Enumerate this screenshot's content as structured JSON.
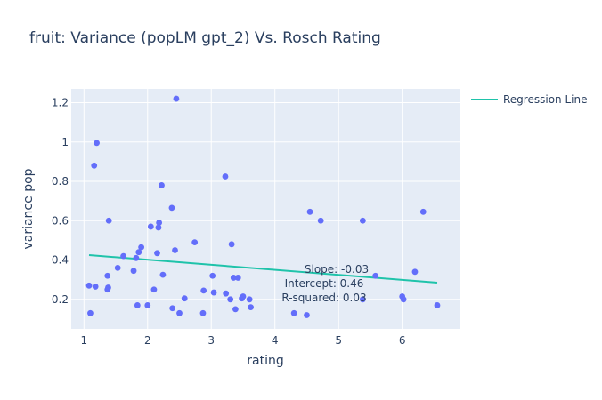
{
  "chart_data": {
    "type": "scatter",
    "title": "fruit: Variance (popLM gpt_2) Vs. Rosch Rating",
    "xlabel": "rating",
    "ylabel": "variance pop",
    "xlim": [
      0.8,
      6.9
    ],
    "ylim": [
      0.05,
      1.27
    ],
    "x_ticks": [
      1,
      2,
      3,
      4,
      5,
      6
    ],
    "x_tick_labels": [
      "1",
      "2",
      "3",
      "4",
      "5",
      "6"
    ],
    "y_ticks": [
      0.2,
      0.4,
      0.6,
      0.8,
      1.0,
      1.2
    ],
    "y_tick_labels": [
      "0.2",
      "0.4",
      "0.6",
      "0.8",
      "1",
      "1.2"
    ],
    "grid": true,
    "legend_position": "top-right",
    "marker_color": "#636efa",
    "line_color": "#1fc3aa",
    "plot_bg": "#e5ecf6",
    "points": {
      "x": [
        1.08,
        1.1,
        1.16,
        1.18,
        1.2,
        1.37,
        1.37,
        1.38,
        1.39,
        1.53,
        1.62,
        1.78,
        1.82,
        1.84,
        1.86,
        1.9,
        2.0,
        2.05,
        2.1,
        2.15,
        2.17,
        2.18,
        2.22,
        2.24,
        2.38,
        2.39,
        2.43,
        2.45,
        2.5,
        2.58,
        2.74,
        2.87,
        2.88,
        3.02,
        3.04,
        3.22,
        3.23,
        3.3,
        3.32,
        3.35,
        3.38,
        3.42,
        3.48,
        3.5,
        3.6,
        3.62,
        4.3,
        4.5,
        4.55,
        4.72,
        5.38,
        5.38,
        5.58,
        6.0,
        6.02,
        6.2,
        6.33,
        6.55
      ],
      "y": [
        0.27,
        0.13,
        0.88,
        0.265,
        0.995,
        0.32,
        0.25,
        0.26,
        0.6,
        0.36,
        0.42,
        0.345,
        0.41,
        0.17,
        0.44,
        0.465,
        0.17,
        0.57,
        0.25,
        0.435,
        0.565,
        0.59,
        0.78,
        0.325,
        0.665,
        0.155,
        0.45,
        1.22,
        0.13,
        0.205,
        0.49,
        0.13,
        0.245,
        0.32,
        0.235,
        0.825,
        0.23,
        0.2,
        0.48,
        0.31,
        0.15,
        0.31,
        0.205,
        0.215,
        0.2,
        0.16,
        0.13,
        0.12,
        0.645,
        0.6,
        0.6,
        0.2,
        0.32,
        0.215,
        0.2,
        0.34,
        0.645,
        0.17
      ]
    },
    "regression": {
      "name": "Regression Line",
      "x": [
        1.08,
        6.55
      ],
      "y": [
        0.425,
        0.285
      ]
    },
    "annotation": {
      "slope_text": "Slope: -0.03",
      "intercept_text": "Intercept: 0.46",
      "r2_text": "R-squared: 0.03"
    }
  }
}
